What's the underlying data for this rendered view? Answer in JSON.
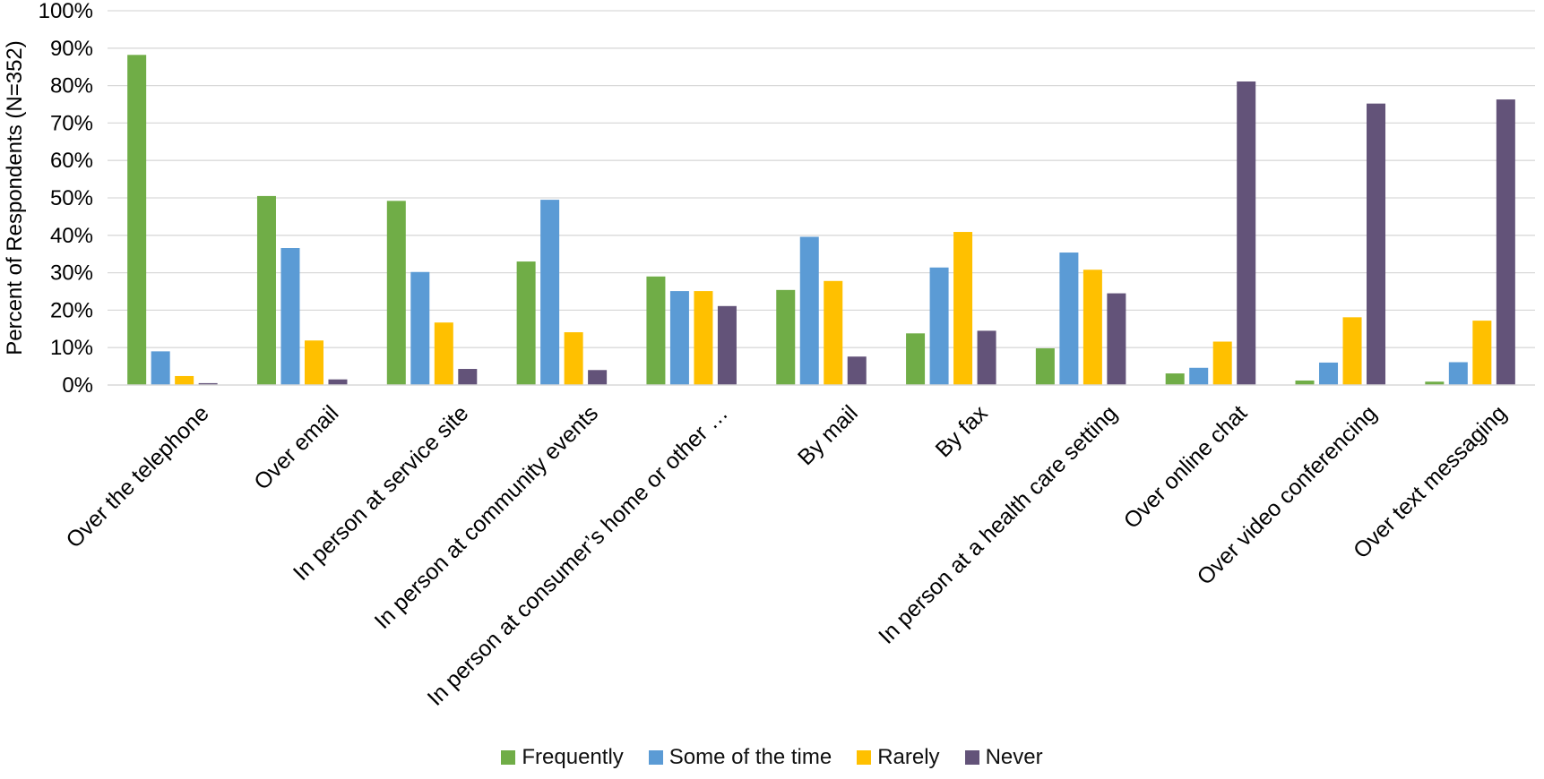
{
  "chart_data": {
    "type": "bar",
    "title": "",
    "xlabel": "",
    "ylabel": "Percent of Respondents (N=352)",
    "ylim": [
      0,
      100
    ],
    "yticks": [
      "0%",
      "10%",
      "20%",
      "30%",
      "40%",
      "50%",
      "60%",
      "70%",
      "80%",
      "90%",
      "100%"
    ],
    "grid": true,
    "legend_position": "bottom",
    "categories": [
      "Over the telephone",
      "Over email",
      "In person at service site",
      "In person at community events",
      "In person at consumer’s home or other …",
      "By mail",
      "By fax",
      "In person at a health care setting",
      "Over online chat",
      "Over video conferencing",
      "Over text messaging"
    ],
    "series": [
      {
        "name": "Frequently",
        "color": "#70AD47",
        "values": [
          88.2,
          50.5,
          49.2,
          33.0,
          29.0,
          25.4,
          13.8,
          9.8,
          3.1,
          1.2,
          0.9
        ]
      },
      {
        "name": "Some of the time",
        "color": "#5B9BD5",
        "values": [
          9.0,
          36.6,
          30.2,
          49.5,
          25.1,
          39.6,
          31.4,
          35.4,
          4.6,
          6.0,
          6.1
        ]
      },
      {
        "name": "Rarely",
        "color": "#FFC000",
        "values": [
          2.4,
          11.9,
          16.7,
          14.1,
          25.1,
          27.8,
          40.9,
          30.8,
          11.6,
          18.1,
          17.2
        ]
      },
      {
        "name": "Never",
        "color": "#635379",
        "values": [
          0.5,
          1.5,
          4.3,
          4.0,
          21.1,
          7.6,
          14.5,
          24.5,
          81.1,
          75.2,
          76.3
        ]
      }
    ]
  }
}
